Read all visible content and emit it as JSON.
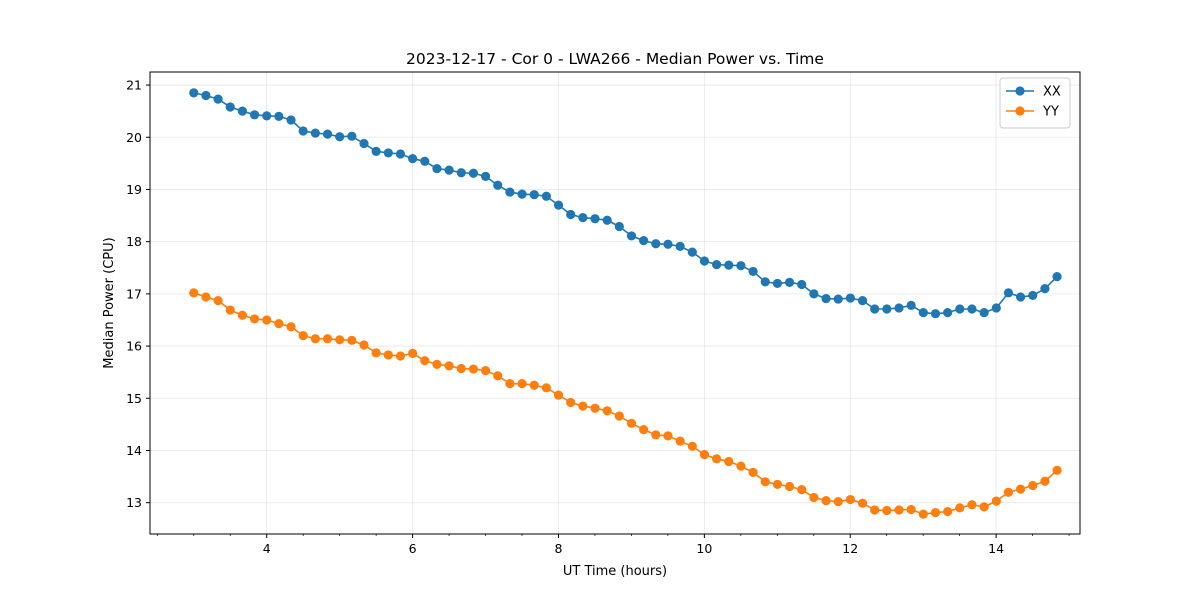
{
  "chart_data": {
    "type": "line",
    "title": "2023-12-17 - Cor 0 - LWA266 - Median Power vs. Time",
    "xlabel": "UT Time (hours)",
    "ylabel": "Median Power (CPU)",
    "xlim": [
      2.4,
      15.15
    ],
    "ylim": [
      12.4,
      21.25
    ],
    "xticks": [
      4,
      6,
      8,
      10,
      12,
      14
    ],
    "xtick_labels": [
      "4",
      "6",
      "8",
      "10",
      "12",
      "14"
    ],
    "xminor_step": 0.5,
    "yticks": [
      13,
      14,
      15,
      16,
      17,
      18,
      19,
      20,
      21
    ],
    "ytick_labels": [
      "13",
      "14",
      "15",
      "16",
      "17",
      "18",
      "19",
      "20",
      "21"
    ],
    "grid": true,
    "legend_position": "top-right",
    "x_start": 3.0,
    "x_step": 0.1667,
    "series": [
      {
        "name": "XX",
        "color": "#1f77b4",
        "values": [
          20.85,
          20.8,
          20.73,
          20.58,
          20.5,
          20.43,
          20.41,
          20.4,
          20.33,
          20.12,
          20.08,
          20.06,
          20.01,
          20.02,
          19.88,
          19.73,
          19.7,
          19.68,
          19.59,
          19.54,
          19.4,
          19.37,
          19.32,
          19.31,
          19.25,
          19.08,
          18.95,
          18.91,
          18.9,
          18.87,
          18.7,
          18.52,
          18.46,
          18.44,
          18.41,
          18.29,
          18.11,
          18.02,
          17.96,
          17.95,
          17.91,
          17.8,
          17.63,
          17.56,
          17.55,
          17.54,
          17.43,
          17.23,
          17.2,
          17.22,
          17.18,
          17.0,
          16.91,
          16.9,
          16.92,
          16.87,
          16.71,
          16.71,
          16.73,
          16.78,
          16.64,
          16.62,
          16.64,
          16.71,
          16.71,
          16.64,
          16.73,
          17.02,
          16.94,
          16.97,
          17.1,
          17.33
        ]
      },
      {
        "name": "YY",
        "color": "#ff7f0e",
        "values": [
          17.02,
          16.94,
          16.87,
          16.69,
          16.59,
          16.52,
          16.5,
          16.43,
          16.37,
          16.2,
          16.14,
          16.14,
          16.12,
          16.11,
          16.02,
          15.87,
          15.83,
          15.81,
          15.86,
          15.72,
          15.65,
          15.62,
          15.57,
          15.56,
          15.53,
          15.43,
          15.28,
          15.28,
          15.25,
          15.2,
          15.06,
          14.92,
          14.85,
          14.81,
          14.76,
          14.66,
          14.52,
          14.4,
          14.3,
          14.28,
          14.18,
          14.08,
          13.92,
          13.84,
          13.79,
          13.7,
          13.58,
          13.4,
          13.35,
          13.31,
          13.25,
          13.1,
          13.04,
          13.02,
          13.06,
          12.99,
          12.86,
          12.85,
          12.86,
          12.87,
          12.78,
          12.81,
          12.83,
          12.9,
          12.96,
          12.92,
          13.03,
          13.2,
          13.26,
          13.33,
          13.41,
          13.62
        ]
      }
    ]
  }
}
